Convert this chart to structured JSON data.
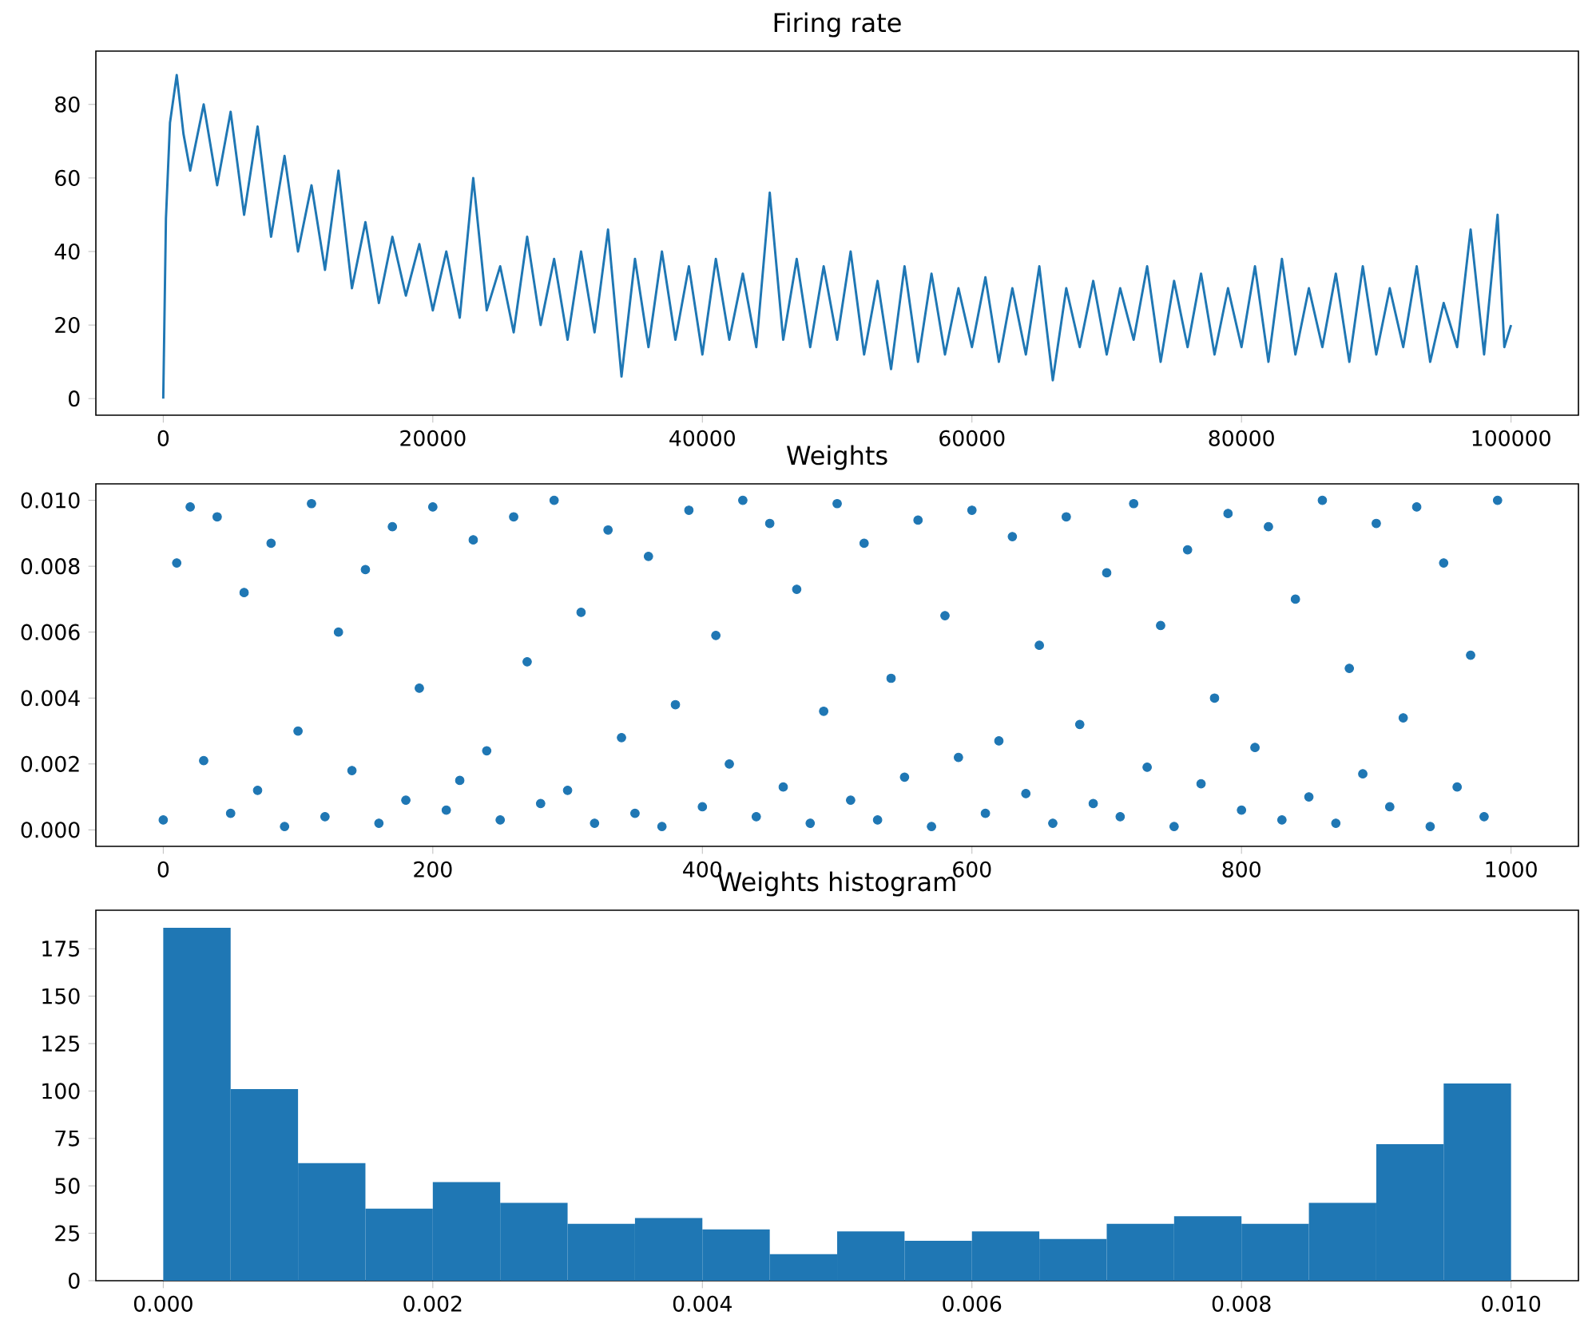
{
  "chart_data": [
    {
      "type": "line",
      "title": "Firing rate",
      "color": "#1f77b4",
      "x": [
        0,
        200,
        500,
        1000,
        1500,
        2000,
        3000,
        4000,
        5000,
        6000,
        7000,
        8000,
        9000,
        10000,
        11000,
        12000,
        13000,
        14000,
        15000,
        16000,
        17000,
        18000,
        19000,
        20000,
        21000,
        22000,
        23000,
        24000,
        25000,
        26000,
        27000,
        28000,
        29000,
        30000,
        31000,
        32000,
        33000,
        34000,
        35000,
        36000,
        37000,
        38000,
        39000,
        40000,
        41000,
        42000,
        43000,
        44000,
        45000,
        46000,
        47000,
        48000,
        49000,
        50000,
        51000,
        52000,
        53000,
        54000,
        55000,
        56000,
        57000,
        58000,
        59000,
        60000,
        61000,
        62000,
        63000,
        64000,
        65000,
        66000,
        67000,
        68000,
        69000,
        70000,
        71000,
        72000,
        73000,
        74000,
        75000,
        76000,
        77000,
        78000,
        79000,
        80000,
        81000,
        82000,
        83000,
        84000,
        85000,
        86000,
        87000,
        88000,
        89000,
        90000,
        91000,
        92000,
        93000,
        94000,
        95000,
        96000,
        97000,
        98000,
        99000,
        99500,
        100000
      ],
      "values": [
        0,
        49,
        75,
        88,
        72,
        62,
        80,
        58,
        78,
        50,
        74,
        44,
        66,
        40,
        58,
        35,
        62,
        30,
        48,
        26,
        44,
        28,
        42,
        24,
        40,
        22,
        60,
        24,
        36,
        18,
        44,
        20,
        38,
        16,
        40,
        18,
        46,
        6,
        38,
        14,
        40,
        16,
        36,
        12,
        38,
        16,
        34,
        14,
        56,
        16,
        38,
        14,
        36,
        16,
        40,
        12,
        32,
        8,
        36,
        10,
        34,
        12,
        30,
        14,
        33,
        10,
        30,
        12,
        36,
        5,
        30,
        14,
        32,
        12,
        30,
        16,
        36,
        10,
        32,
        14,
        34,
        12,
        30,
        14,
        36,
        10,
        38,
        12,
        30,
        14,
        34,
        10,
        36,
        12,
        30,
        14,
        36,
        10,
        26,
        14,
        46,
        12,
        50,
        14,
        20
      ],
      "xlim": [
        -5000,
        105000
      ],
      "ylim": [
        -4.5,
        94.5
      ],
      "xticks": [
        0,
        20000,
        40000,
        60000,
        80000,
        100000
      ],
      "yticks": [
        0,
        20,
        40,
        60,
        80
      ]
    },
    {
      "type": "scatter",
      "title": "Weights",
      "color": "#1f77b4",
      "marker": "circle",
      "x": [
        0,
        10,
        20,
        30,
        40,
        50,
        60,
        70,
        80,
        90,
        100,
        110,
        120,
        130,
        140,
        150,
        160,
        170,
        180,
        190,
        200,
        210,
        220,
        230,
        240,
        250,
        260,
        270,
        280,
        290,
        300,
        310,
        320,
        330,
        340,
        350,
        360,
        370,
        380,
        390,
        400,
        410,
        420,
        430,
        440,
        450,
        460,
        470,
        480,
        490,
        500,
        510,
        520,
        530,
        540,
        550,
        560,
        570,
        580,
        590,
        600,
        610,
        620,
        630,
        640,
        650,
        660,
        670,
        680,
        690,
        700,
        710,
        720,
        730,
        740,
        750,
        760,
        770,
        780,
        790,
        800,
        810,
        820,
        830,
        840,
        850,
        860,
        870,
        880,
        890,
        900,
        910,
        920,
        930,
        940,
        950,
        960,
        970,
        980,
        990
      ],
      "values": [
        0.0003,
        0.0081,
        0.0098,
        0.0021,
        0.0095,
        0.0005,
        0.0072,
        0.0012,
        0.0087,
        0.0001,
        0.003,
        0.0099,
        0.0004,
        0.006,
        0.0018,
        0.0079,
        0.0002,
        0.0092,
        0.0009,
        0.0043,
        0.0098,
        0.0006,
        0.0015,
        0.0088,
        0.0024,
        0.0003,
        0.0095,
        0.0051,
        0.0008,
        0.01,
        0.0012,
        0.0066,
        0.0002,
        0.0091,
        0.0028,
        0.0005,
        0.0083,
        0.0001,
        0.0038,
        0.0097,
        0.0007,
        0.0059,
        0.002,
        0.01,
        0.0004,
        0.0093,
        0.0013,
        0.0073,
        0.0002,
        0.0036,
        0.0099,
        0.0009,
        0.0087,
        0.0003,
        0.0046,
        0.0016,
        0.0094,
        0.0001,
        0.0065,
        0.0022,
        0.0097,
        0.0005,
        0.0027,
        0.0089,
        0.0011,
        0.0056,
        0.0002,
        0.0095,
        0.0032,
        0.0008,
        0.0078,
        0.0004,
        0.0099,
        0.0019,
        0.0062,
        0.0001,
        0.0085,
        0.0014,
        0.004,
        0.0096,
        0.0006,
        0.0025,
        0.0092,
        0.0003,
        0.007,
        0.001,
        0.01,
        0.0002,
        0.0049,
        0.0017,
        0.0093,
        0.0007,
        0.0034,
        0.0098,
        0.0001,
        0.0081,
        0.0013,
        0.0053,
        0.0004,
        0.01
      ],
      "xlim": [
        -50,
        1050
      ],
      "ylim": [
        -0.0005,
        0.0105
      ],
      "xticks": [
        0,
        200,
        400,
        600,
        800,
        1000
      ],
      "yticks": [
        {
          "value": 0,
          "label": "0.000"
        },
        {
          "value": 0.002,
          "label": "0.002"
        },
        {
          "value": 0.004,
          "label": "0.004"
        },
        {
          "value": 0.006,
          "label": "0.006"
        },
        {
          "value": 0.008,
          "label": "0.008"
        },
        {
          "value": 0.01,
          "label": "0.010"
        }
      ]
    },
    {
      "type": "histogram",
      "title": "Weights histogram",
      "color": "#1f77b4",
      "bins": [
        0,
        0.0005,
        0.001,
        0.0015,
        0.002,
        0.0025,
        0.003,
        0.0035,
        0.004,
        0.0045,
        0.005,
        0.0055,
        0.006,
        0.0065,
        0.007,
        0.0075,
        0.008,
        0.0085,
        0.009,
        0.0095,
        0.01
      ],
      "values": [
        186,
        101,
        62,
        38,
        52,
        41,
        30,
        33,
        27,
        14,
        26,
        21,
        26,
        22,
        30,
        34,
        30,
        41,
        72,
        104
      ],
      "xlim": [
        -0.0005,
        0.0105
      ],
      "ylim": [
        0,
        195.3
      ],
      "xticks": [
        {
          "value": 0,
          "label": "0.000"
        },
        {
          "value": 0.002,
          "label": "0.002"
        },
        {
          "value": 0.004,
          "label": "0.004"
        },
        {
          "value": 0.006,
          "label": "0.006"
        },
        {
          "value": 0.008,
          "label": "0.008"
        },
        {
          "value": 0.01,
          "label": "0.010"
        }
      ],
      "yticks": [
        0,
        25,
        50,
        75,
        100,
        125,
        150,
        175
      ]
    }
  ]
}
